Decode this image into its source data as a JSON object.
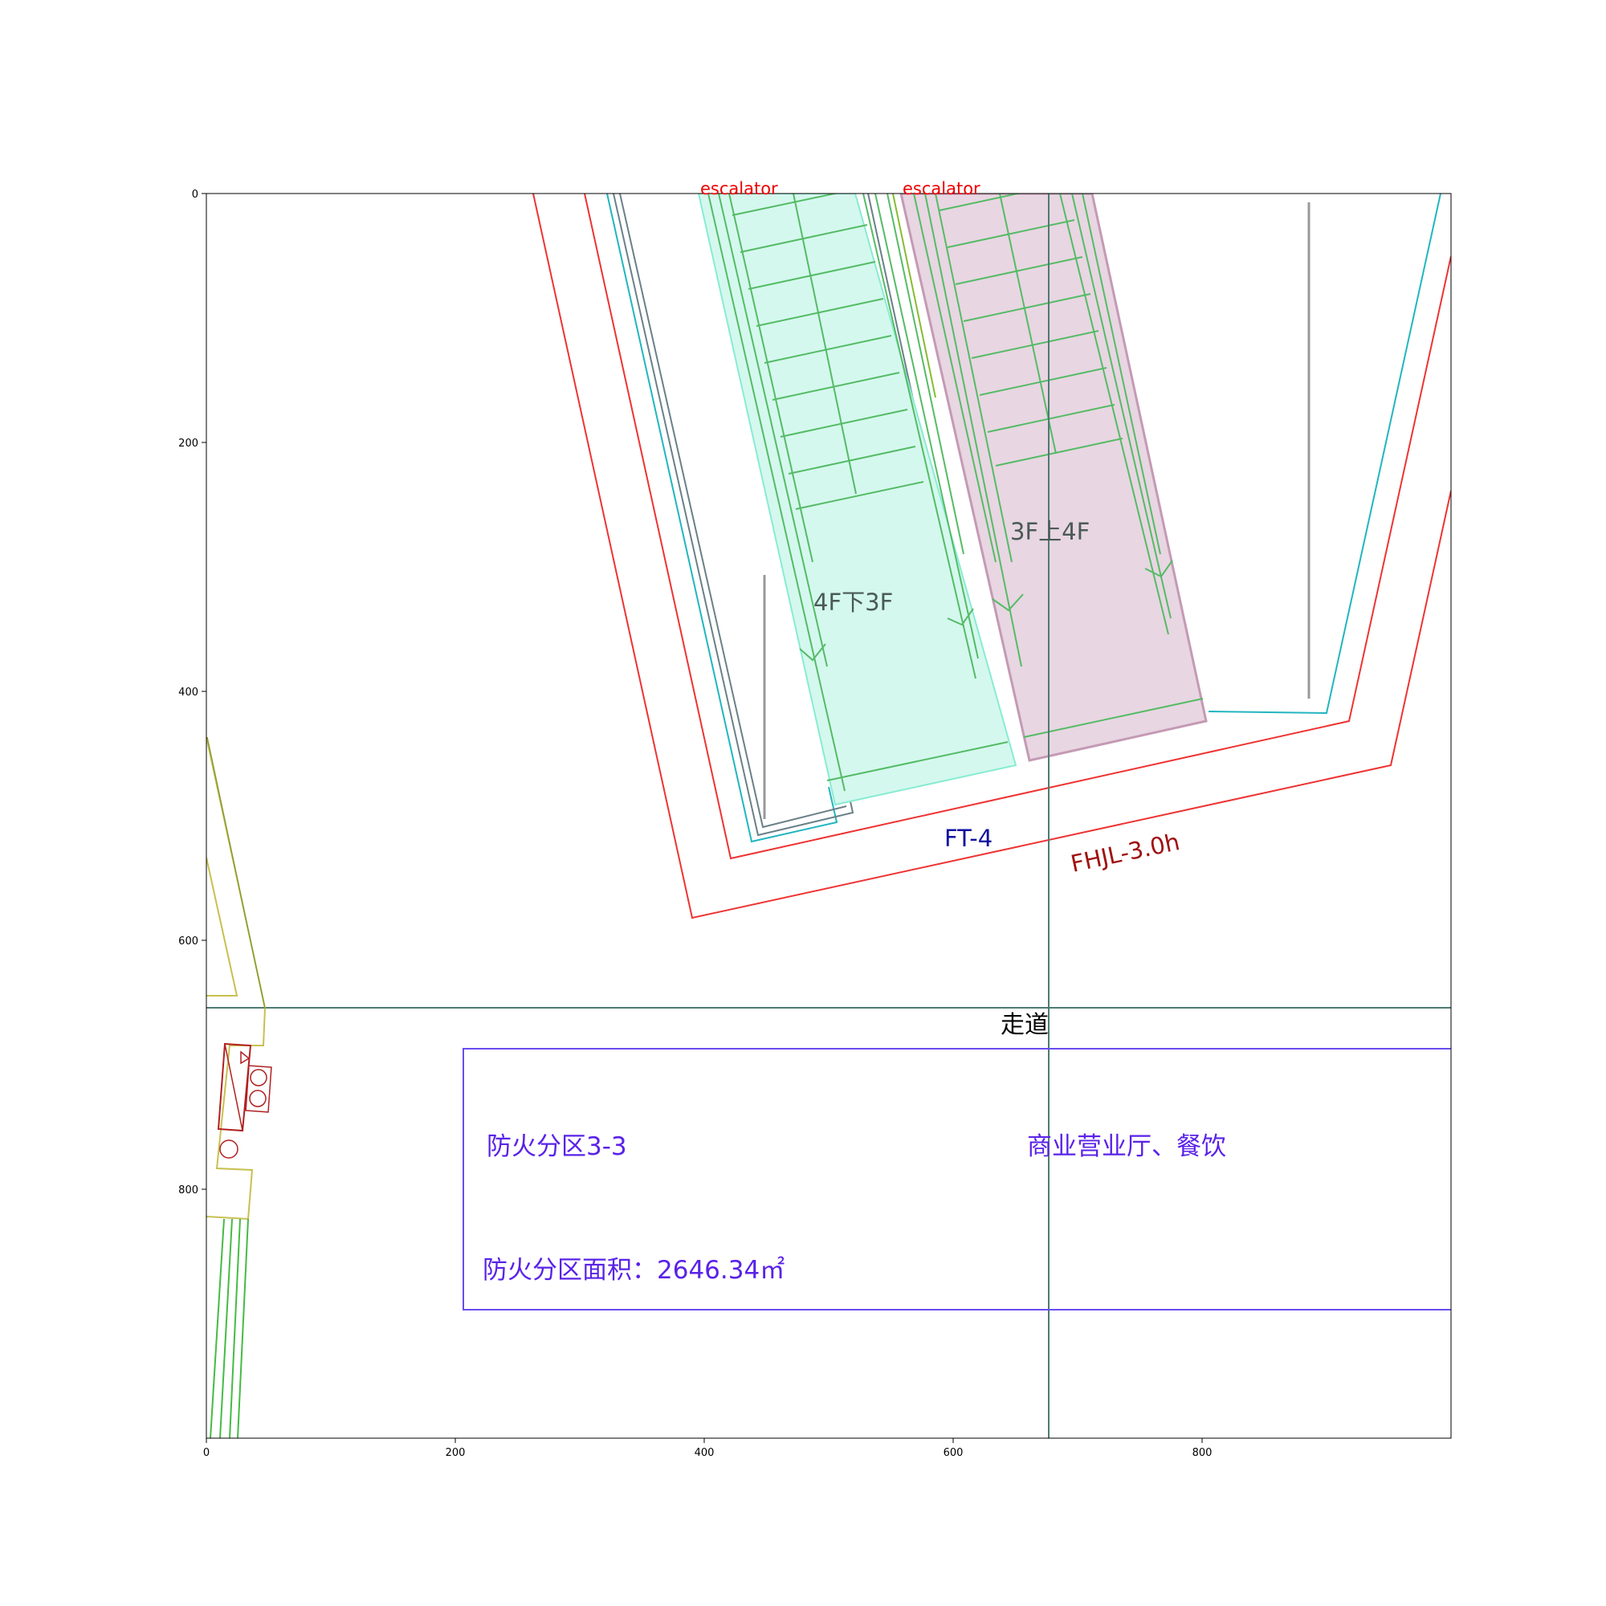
{
  "axes": {
    "xlim": [
      0,
      1000
    ],
    "ylim": [
      1000,
      0
    ],
    "x_ticks": [
      0,
      200,
      400,
      600,
      800
    ],
    "y_ticks": [
      0,
      200,
      400,
      600,
      800
    ],
    "x_tick_labels": [
      "0",
      "200",
      "400",
      "600",
      "800"
    ],
    "y_tick_labels": [
      "0",
      "200",
      "400",
      "600",
      "800"
    ]
  },
  "labels": {
    "escalator_left": "escalator",
    "escalator_right": "escalator",
    "down": "4F下3F",
    "up": "3F上4F",
    "shaft": "FT-4",
    "fire_rating": "FHJL-3.0h",
    "corridor": "走道",
    "zone_name": "防火分区3-3",
    "zone_use": "商业营业厅、餐饮",
    "zone_area": "防火分区面积：2646.34㎡"
  },
  "colors": {
    "red_outline": "#ee3333",
    "cyan_outline": "#22b5c0",
    "gray_outline": "#6a8088",
    "green_line": "#55bb66",
    "mint_fill": "#d4f8ee",
    "mint_edge": "#88ecd2",
    "pink_fill": "#e8d6e2",
    "pink_edge": "#c49ab4",
    "blue_box": "#6a4cf0",
    "olive": "#c8c050",
    "dark_red": "#b02020",
    "corridor_line": "#4e7a72"
  }
}
